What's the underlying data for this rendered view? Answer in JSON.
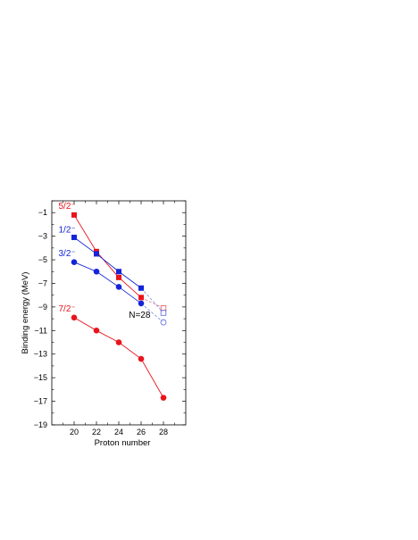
{
  "chart_data": {
    "type": "line",
    "xlabel": "Proton number",
    "ylabel": "Binding energy (MeV)",
    "xlim": [
      18,
      30
    ],
    "ylim": [
      -19,
      0
    ],
    "x_ticks": [
      20,
      22,
      24,
      26,
      28
    ],
    "y_ticks": [
      -1,
      -3,
      -5,
      -7,
      -9,
      -11,
      -13,
      -15,
      -17,
      -19
    ],
    "grid": false,
    "annotations": [
      {
        "text": "N=28",
        "x": 24.9,
        "y": -9.9
      }
    ],
    "series": [
      {
        "name": "5/2⁻",
        "color": "#e8141c",
        "marker": "square",
        "x": [
          20,
          22,
          24,
          26
        ],
        "values": [
          -1.2,
          -4.3,
          -6.5,
          -8.2
        ],
        "extrapolated": {
          "x": [
            26,
            28
          ],
          "values": [
            -8.2,
            -9.1
          ]
        },
        "label_at": {
          "x": 18.6,
          "y": -0.7
        }
      },
      {
        "name": "1/2⁻",
        "color": "#1424d8",
        "marker": "square",
        "x": [
          20,
          22,
          24,
          26
        ],
        "values": [
          -3.1,
          -4.5,
          -6.0,
          -7.4
        ],
        "extrapolated": {
          "x": [
            26,
            28
          ],
          "values": [
            -7.4,
            -9.5
          ]
        },
        "label_at": {
          "x": 18.6,
          "y": -2.7
        }
      },
      {
        "name": "3/2⁻",
        "color": "#1424d8",
        "marker": "circle",
        "x": [
          20,
          22,
          24,
          26
        ],
        "values": [
          -5.2,
          -6.0,
          -7.3,
          -8.7
        ],
        "extrapolated": {
          "x": [
            26,
            28
          ],
          "values": [
            -8.7,
            -10.3
          ]
        },
        "label_at": {
          "x": 18.6,
          "y": -4.7
        }
      },
      {
        "name": "7/2⁻",
        "color": "#e8141c",
        "marker": "circle",
        "x": [
          20,
          22,
          24,
          26,
          28
        ],
        "values": [
          -9.9,
          -11.0,
          -12.0,
          -13.4,
          -16.7
        ],
        "label_at": {
          "x": 18.6,
          "y": -9.4
        }
      }
    ]
  }
}
